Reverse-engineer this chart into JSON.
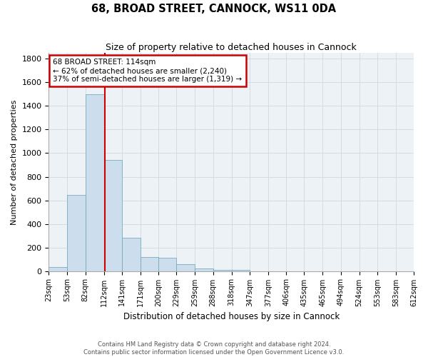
{
  "title": "68, BROAD STREET, CANNOCK, WS11 0DA",
  "subtitle": "Size of property relative to detached houses in Cannock",
  "xlabel": "Distribution of detached houses by size in Cannock",
  "ylabel": "Number of detached properties",
  "property_size": 114,
  "annotation_line1": "68 BROAD STREET: 114sqm",
  "annotation_line2": "← 62% of detached houses are smaller (2,240)",
  "annotation_line3": "37% of semi-detached houses are larger (1,319) →",
  "footer_line1": "Contains HM Land Registry data © Crown copyright and database right 2024.",
  "footer_line2": "Contains public sector information licensed under the Open Government Licence v3.0.",
  "bar_color": "#ccdded",
  "bar_edge_color": "#7aaabb",
  "vline_color": "#cc0000",
  "annotation_box_edge_color": "#cc0000",
  "grid_color": "#d0d8e0",
  "background_color": "#edf2f7",
  "bins": [
    23,
    53,
    82,
    112,
    141,
    171,
    200,
    229,
    259,
    288,
    318,
    347,
    377,
    406,
    435,
    465,
    494,
    524,
    553,
    583,
    612
  ],
  "bin_labels": [
    "23sqm",
    "53sqm",
    "82sqm",
    "112sqm",
    "141sqm",
    "171sqm",
    "200sqm",
    "229sqm",
    "259sqm",
    "288sqm",
    "318sqm",
    "347sqm",
    "377sqm",
    "406sqm",
    "435sqm",
    "465sqm",
    "494sqm",
    "524sqm",
    "553sqm",
    "583sqm",
    "612sqm"
  ],
  "values": [
    35,
    645,
    1500,
    940,
    280,
    120,
    115,
    55,
    20,
    12,
    8,
    0,
    0,
    0,
    0,
    0,
    0,
    0,
    0,
    0
  ],
  "ylim": [
    0,
    1850
  ],
  "yticks": [
    0,
    200,
    400,
    600,
    800,
    1000,
    1200,
    1400,
    1600,
    1800
  ]
}
